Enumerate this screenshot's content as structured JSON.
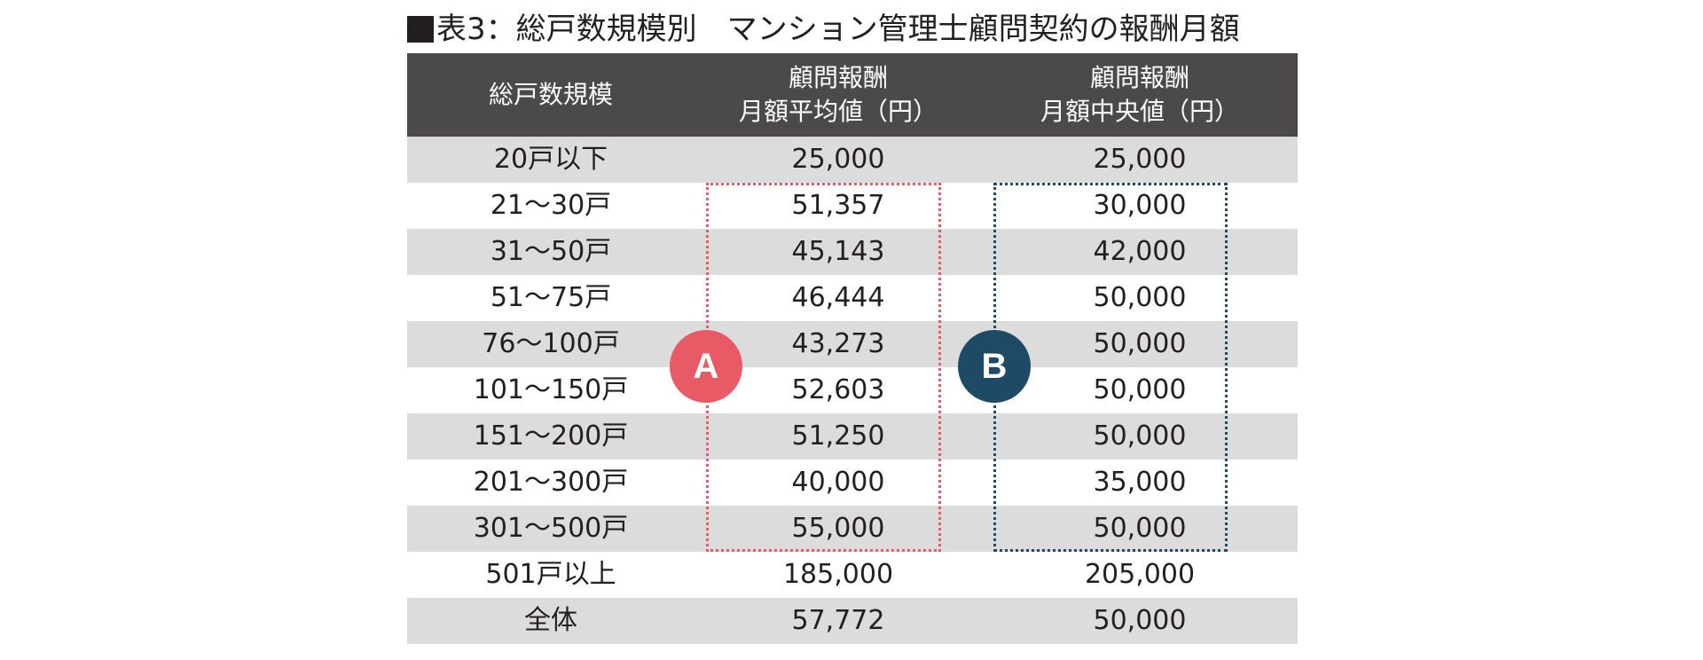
{
  "title": "表3：総戸数規模別　マンション管理士顧問契約の報酬月額",
  "headers": {
    "col1": "総戸数規模",
    "col2_line1": "顧問報酬",
    "col2_line2": "月額平均値（円）",
    "col3_line1": "顧問報酬",
    "col3_line2": "月額中央値（円）"
  },
  "rows": [
    {
      "scale": "20戸以下",
      "avg": "25,000",
      "median": "25,000"
    },
    {
      "scale": "21〜30戸",
      "avg": "51,357",
      "median": "30,000"
    },
    {
      "scale": "31〜50戸",
      "avg": "45,143",
      "median": "42,000"
    },
    {
      "scale": "51〜75戸",
      "avg": "46,444",
      "median": "50,000"
    },
    {
      "scale": "76〜100戸",
      "avg": "43,273",
      "median": "50,000"
    },
    {
      "scale": "101〜150戸",
      "avg": "52,603",
      "median": "50,000"
    },
    {
      "scale": "151〜200戸",
      "avg": "51,250",
      "median": "50,000"
    },
    {
      "scale": "201〜300戸",
      "avg": "40,000",
      "median": "35,000"
    },
    {
      "scale": "301〜500戸",
      "avg": "55,000",
      "median": "50,000"
    },
    {
      "scale": "501戸以上",
      "avg": "185,000",
      "median": "205,000"
    },
    {
      "scale": "全体",
      "avg": "57,772",
      "median": "50,000"
    }
  ],
  "badges": {
    "a": "A",
    "b": "B"
  },
  "colors": {
    "header_bg": "#4b4949",
    "row_shade": "#dcdcdc",
    "badge_a": "#e95a67",
    "badge_b": "#1f4a66"
  }
}
